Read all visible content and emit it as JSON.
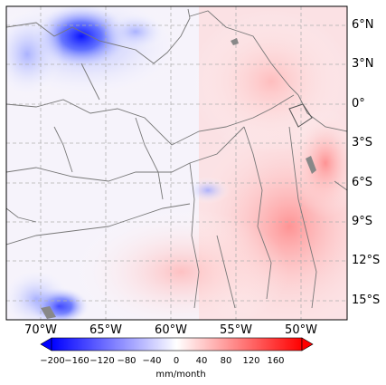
{
  "map": {
    "lat_labels": [
      "6°N",
      "3°N",
      "0°",
      "3°S",
      "6°S",
      "9°S",
      "12°S",
      "15°S"
    ],
    "lon_labels": [
      "70°W",
      "65°W",
      "60°W",
      "55°W",
      "50°W"
    ],
    "grid": true,
    "grid_style": "dashed",
    "colormap": "bwr"
  },
  "colorbar": {
    "ticks": [
      "−200",
      "−160",
      "−120",
      "−80",
      "−40",
      "0",
      "40",
      "80",
      "120",
      "160"
    ],
    "unit": "mm/month",
    "extend": "both",
    "colors": {
      "min": "#0000ff",
      "mid": "#ffffff",
      "max": "#ff0000"
    }
  }
}
